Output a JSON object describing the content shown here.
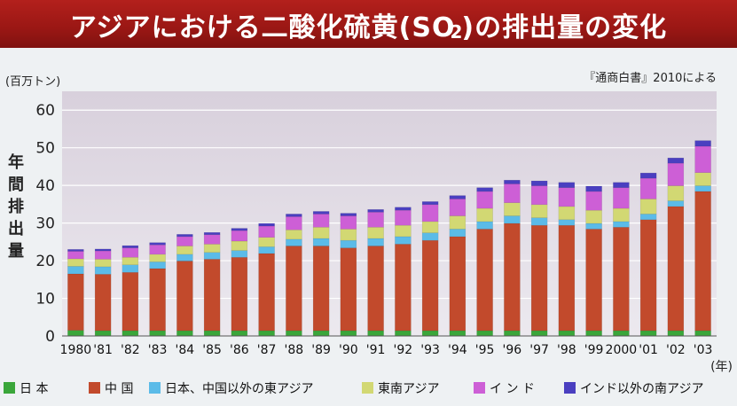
{
  "title": {
    "prefix": "アジアにおける二酸化硫黄(SO",
    "sub": "2",
    "suffix": ")の排出量の変化"
  },
  "source": "『通商白書』2010による",
  "colors": {
    "japan": "#3aa63a",
    "china": "#c24a2c",
    "east_asia": "#5bbbe8",
    "southeast_asia": "#d2d873",
    "india": "#cd5fd6",
    "south_asia": "#4a3fc0",
    "plot_bg_top": "#d8d0dc",
    "plot_bg_bottom": "#ece9ef"
  },
  "chart_data": {
    "type": "bar",
    "stacked": true,
    "unit_label": "(百万トン)",
    "ylabel": "年間排出量",
    "xunit": "(年)",
    "ylim": [
      0,
      65
    ],
    "yticks": [
      0,
      10,
      20,
      30,
      40,
      50,
      60
    ],
    "categories": [
      "1980",
      "'81",
      "'82",
      "'83",
      "'84",
      "'85",
      "'86",
      "'87",
      "'88",
      "'89",
      "'90",
      "'91",
      "'92",
      "'93",
      "'94",
      "'95",
      "'96",
      "'97",
      "'98",
      "'99",
      "2000",
      "'01",
      "'02",
      "'03"
    ],
    "series": [
      {
        "name": "日 本",
        "key": "japan",
        "values": [
          1.5,
          1.4,
          1.4,
          1.4,
          1.4,
          1.4,
          1.4,
          1.4,
          1.4,
          1.4,
          1.4,
          1.4,
          1.4,
          1.4,
          1.4,
          1.4,
          1.4,
          1.4,
          1.4,
          1.4,
          1.4,
          1.4,
          1.4,
          1.4
        ]
      },
      {
        "name": "中 国",
        "key": "china",
        "values": [
          15.0,
          15.0,
          15.5,
          16.5,
          18.5,
          19.0,
          19.5,
          20.5,
          22.5,
          22.5,
          22.0,
          22.5,
          23.0,
          24.0,
          25.0,
          27.0,
          28.5,
          28.0,
          28.0,
          27.0,
          27.5,
          29.5,
          33.0,
          37.0
        ]
      },
      {
        "name": "日本、中国以外の東アジア",
        "key": "east_asia",
        "values": [
          2.0,
          2.0,
          2.0,
          1.8,
          1.8,
          1.8,
          1.8,
          1.8,
          1.8,
          2.0,
          2.0,
          2.0,
          2.0,
          2.0,
          2.0,
          2.0,
          2.0,
          2.0,
          1.5,
          1.5,
          1.5,
          1.5,
          1.5,
          1.5
        ]
      },
      {
        "name": "東南アジア",
        "key": "southeast_asia",
        "values": [
          2.0,
          2.0,
          2.0,
          2.0,
          2.2,
          2.2,
          2.5,
          2.5,
          2.5,
          3.0,
          3.0,
          3.0,
          3.0,
          3.0,
          3.5,
          3.5,
          3.5,
          3.5,
          3.5,
          3.5,
          3.5,
          4.0,
          4.0,
          3.5
        ]
      },
      {
        "name": "イ ン ド",
        "key": "india",
        "values": [
          2.0,
          2.2,
          2.5,
          2.5,
          2.5,
          2.5,
          2.8,
          3.0,
          3.5,
          3.5,
          3.5,
          4.0,
          4.0,
          4.5,
          4.5,
          4.5,
          5.0,
          5.0,
          5.0,
          5.0,
          5.5,
          5.5,
          6.0,
          7.0
        ]
      },
      {
        "name": "インド以外の南アジア",
        "key": "south_asia",
        "values": [
          0.5,
          0.5,
          0.6,
          0.6,
          0.6,
          0.6,
          0.6,
          0.7,
          0.7,
          0.7,
          0.7,
          0.7,
          0.8,
          0.8,
          0.9,
          1.0,
          1.0,
          1.3,
          1.4,
          1.4,
          1.4,
          1.4,
          1.4,
          1.5
        ]
      }
    ]
  }
}
